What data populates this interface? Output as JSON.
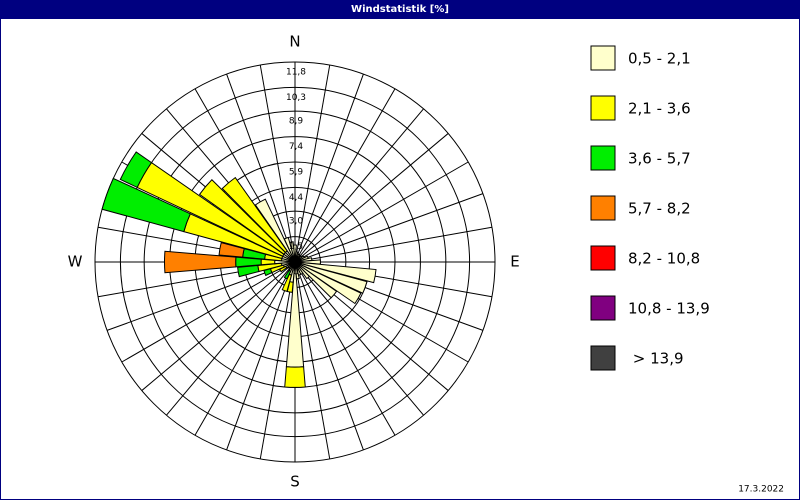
{
  "chart_data": {
    "type": "windrose",
    "title": "Windstatistik [%]",
    "date": "17.3.2022",
    "directions": [
      "N",
      "E",
      "S",
      "W"
    ],
    "categories": [
      null,
      null,
      null,
      null,
      null,
      null,
      null,
      null,
      null,
      null,
      null,
      null,
      null,
      null,
      null,
      null,
      null,
      null,
      null,
      null,
      null,
      null,
      null,
      null,
      null,
      null,
      null,
      null,
      null,
      null,
      null,
      null,
      null,
      null,
      null,
      null
    ],
    "ylim": [
      0,
      11.8
    ],
    "yticks": [
      {
        "value": 0,
        "label": "0"
      },
      {
        "value": 1.5,
        "label": "1,5"
      },
      {
        "value": 3.0,
        "label": "3,0"
      },
      {
        "value": 4.4,
        "label": "4,4"
      },
      {
        "value": 5.9,
        "label": "5,9"
      },
      {
        "value": 7.4,
        "label": "7,4"
      },
      {
        "value": 8.9,
        "label": "8,9"
      },
      {
        "value": 10.3,
        "label": "10,3"
      },
      {
        "value": 11.8,
        "label": "11,8"
      }
    ],
    "series": [
      {
        "name": "0,5 - 2,1",
        "color": "#ffffcc",
        "values": [
          1.0,
          0.6,
          0.5,
          0.5,
          0.4,
          0.5,
          0.6,
          0.8,
          1.0,
          1.5,
          4.8,
          4.4,
          4.3,
          3.0,
          1.2,
          0.8,
          0.8,
          1.0,
          6.2,
          1.2,
          0.8,
          0.6,
          0.5,
          0.5,
          0.6,
          0.7,
          0.8,
          1.2,
          0.8,
          0.8,
          0.8,
          0.8,
          0.8,
          4.1,
          1.5,
          1.2
        ]
      },
      {
        "name": "2,1 - 3,6",
        "color": "#ffff00",
        "values": [
          0,
          0,
          0,
          0,
          0,
          0,
          0,
          0,
          0,
          0,
          0,
          0,
          0,
          0,
          0,
          0,
          0,
          0,
          1.2,
          0.6,
          1.0,
          0,
          0,
          0,
          0.4,
          0.8,
          1.4,
          0.8,
          1.0,
          6.0,
          9.5,
          6.1,
          5.3,
          0,
          0,
          0
        ]
      },
      {
        "name": "3,6 - 5,7",
        "color": "#00ee00",
        "values": [
          0,
          0,
          0,
          0,
          0,
          0,
          0,
          0,
          0,
          0,
          0,
          0,
          0,
          0,
          0,
          0,
          0,
          0,
          0,
          0,
          0,
          0.5,
          0,
          0,
          0,
          0.4,
          1.2,
          1.5,
          1.3,
          5.0,
          1.1,
          0,
          0,
          0,
          0,
          0
        ]
      },
      {
        "name": "5,7 - 8,2",
        "color": "#ff8000",
        "values": [
          0,
          0,
          0,
          0,
          0,
          0,
          0,
          0,
          0,
          0,
          0,
          0,
          0,
          0,
          0,
          0,
          0,
          0,
          0,
          0,
          0,
          0,
          0,
          0,
          0,
          0,
          0,
          4.2,
          1.4,
          0,
          0,
          0,
          0,
          0,
          0,
          0
        ]
      },
      {
        "name": "8,2 - 10,8",
        "color": "#ff0000",
        "values": [
          0,
          0,
          0,
          0,
          0,
          0,
          0,
          0,
          0,
          0,
          0,
          0,
          0,
          0,
          0,
          0,
          0,
          0,
          0,
          0,
          0,
          0,
          0,
          0,
          0,
          0,
          0,
          0,
          0,
          0,
          0,
          0,
          0,
          0,
          0,
          0
        ]
      },
      {
        "name": "10,8 - 13,9",
        "color": "#800080",
        "values": [
          0,
          0,
          0,
          0,
          0,
          0,
          0,
          0,
          0,
          0,
          0,
          0,
          0,
          0,
          0,
          0,
          0,
          0,
          0,
          0,
          0,
          0,
          0,
          0,
          0,
          0,
          0,
          0,
          0,
          0,
          0,
          0,
          0,
          0,
          0,
          0
        ]
      },
      {
        "name": " > 13,9",
        "color": "#404040",
        "values": [
          0,
          0,
          0,
          0,
          0,
          0,
          0,
          0,
          0,
          0,
          0,
          0,
          0,
          0,
          0,
          0,
          0,
          0,
          0,
          0,
          0,
          0,
          0,
          0,
          0,
          0,
          0,
          0,
          0,
          0,
          0,
          0,
          0,
          0,
          0,
          0
        ]
      }
    ]
  }
}
